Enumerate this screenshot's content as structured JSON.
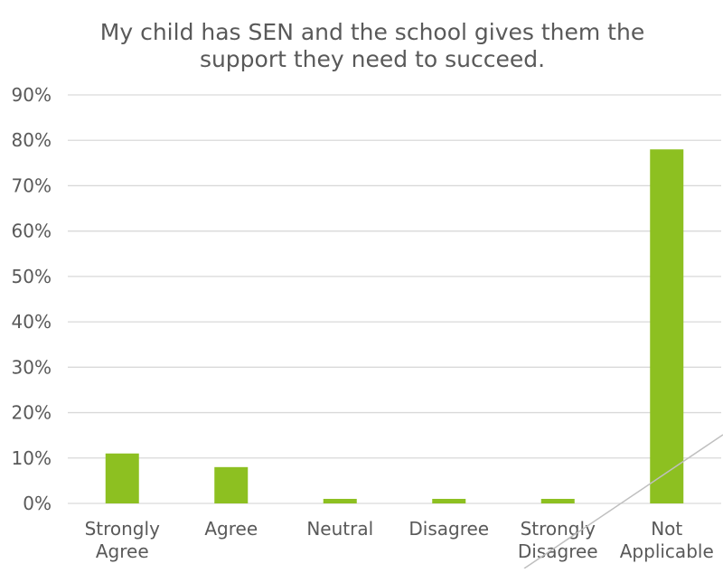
{
  "chart_data": {
    "type": "bar",
    "title_lines": [
      "My child has SEN and the school gives them the",
      "support they need to succeed."
    ],
    "categories": [
      [
        "Strongly",
        "Agree"
      ],
      [
        "Agree"
      ],
      [
        "Neutral"
      ],
      [
        "Disagree"
      ],
      [
        "Strongly",
        "Disagree"
      ],
      [
        "Not",
        "Applicable"
      ]
    ],
    "values": [
      11,
      8,
      1,
      1,
      1,
      78
    ],
    "ylim": [
      0,
      90
    ],
    "y_ticks": [
      "0%",
      "10%",
      "20%",
      "30%",
      "40%",
      "50%",
      "60%",
      "70%",
      "80%",
      "90%"
    ],
    "xlabel": "",
    "ylabel": "",
    "grid": true,
    "legend": "none",
    "colors": {
      "bar": "#8dc021",
      "grid": "#d9d9d9",
      "text": "#595959",
      "stray_line": "#bfbfbf"
    }
  }
}
